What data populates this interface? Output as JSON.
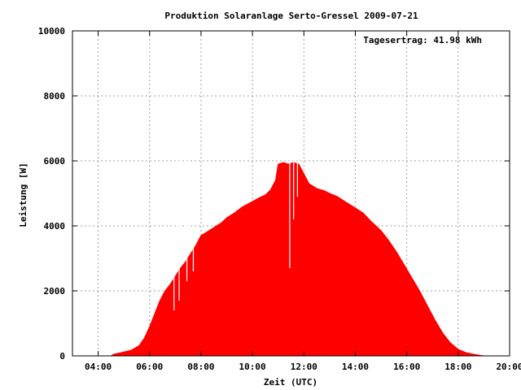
{
  "chart_data": {
    "type": "area",
    "title": "Produktion Solaranlage Serto-Gressel 2009-07-21",
    "xlabel": "Zeit (UTC)",
    "ylabel": "Leistung [W]",
    "annotation": "Tagesertrag: 41.98 kWh",
    "xlim": [
      3.0,
      20.0
    ],
    "ylim": [
      0,
      10000
    ],
    "x_ticks": [
      {
        "v": 4,
        "label": "04:00"
      },
      {
        "v": 6,
        "label": "06:00"
      },
      {
        "v": 8,
        "label": "08:00"
      },
      {
        "v": 10,
        "label": "10:00"
      },
      {
        "v": 12,
        "label": "12:00"
      },
      {
        "v": 14,
        "label": "14:00"
      },
      {
        "v": 16,
        "label": "16:00"
      },
      {
        "v": 18,
        "label": "18:00"
      },
      {
        "v": 20,
        "label": "20:00"
      }
    ],
    "y_ticks": [
      {
        "v": 0,
        "label": "0"
      },
      {
        "v": 2000,
        "label": "2000"
      },
      {
        "v": 4000,
        "label": "4000"
      },
      {
        "v": 6000,
        "label": "6000"
      },
      {
        "v": 8000,
        "label": "8000"
      },
      {
        "v": 10000,
        "label": "10000"
      }
    ],
    "grid": true,
    "color": "#ff0000",
    "series": [
      {
        "points": [
          [
            4.5,
            0
          ],
          [
            4.6,
            50
          ],
          [
            4.9,
            100
          ],
          [
            5.3,
            180
          ],
          [
            5.6,
            320
          ],
          [
            5.8,
            550
          ],
          [
            6.0,
            900
          ],
          [
            6.2,
            1300
          ],
          [
            6.4,
            1700
          ],
          [
            6.6,
            2000
          ],
          [
            6.8,
            2200
          ],
          [
            7.0,
            2450
          ],
          [
            7.2,
            2700
          ],
          [
            7.4,
            2900
          ],
          [
            7.6,
            3150
          ],
          [
            7.8,
            3400
          ],
          [
            8.0,
            3700
          ],
          [
            8.2,
            3800
          ],
          [
            8.5,
            3950
          ],
          [
            8.8,
            4100
          ],
          [
            9.0,
            4250
          ],
          [
            9.3,
            4400
          ],
          [
            9.6,
            4580
          ],
          [
            10.0,
            4750
          ],
          [
            10.3,
            4880
          ],
          [
            10.5,
            4950
          ],
          [
            10.7,
            5100
          ],
          [
            10.9,
            5400
          ],
          [
            11.0,
            5900
          ],
          [
            11.2,
            5950
          ],
          [
            11.4,
            5900
          ],
          [
            11.6,
            5950
          ],
          [
            11.8,
            5900
          ],
          [
            12.0,
            5600
          ],
          [
            12.2,
            5300
          ],
          [
            12.5,
            5150
          ],
          [
            12.8,
            5080
          ],
          [
            13.0,
            5000
          ],
          [
            13.3,
            4900
          ],
          [
            13.6,
            4750
          ],
          [
            14.0,
            4550
          ],
          [
            14.3,
            4400
          ],
          [
            14.6,
            4150
          ],
          [
            15.0,
            3850
          ],
          [
            15.3,
            3550
          ],
          [
            15.6,
            3200
          ],
          [
            15.9,
            2800
          ],
          [
            16.2,
            2400
          ],
          [
            16.5,
            2000
          ],
          [
            16.8,
            1550
          ],
          [
            17.1,
            1100
          ],
          [
            17.4,
            700
          ],
          [
            17.7,
            400
          ],
          [
            18.0,
            200
          ],
          [
            18.3,
            100
          ],
          [
            18.6,
            50
          ],
          [
            19.0,
            0
          ]
        ]
      }
    ]
  }
}
